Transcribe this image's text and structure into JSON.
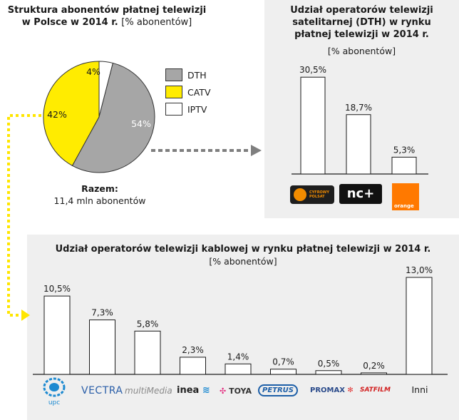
{
  "pie_panel": {
    "title_line1": "Struktura abonentów płatnej telewizji",
    "title_line2": "w Polsce w 2014 r.",
    "unit": "[% abonentów]",
    "total_label": "Razem:",
    "total_value": "11,4 mln abonentów"
  },
  "dth_panel": {
    "title_line1": "Udział operatorów telewizji",
    "title_line2": "satelitarnej (DTH) w rynku",
    "title_line3": "płatnej telewizji w 2014 r.",
    "unit": "[% abonentów]",
    "logos": {
      "cyfrowy": "CYFROWY POLSAT",
      "nc": "nc+",
      "orange": "orange"
    }
  },
  "cable_panel": {
    "title": "Udział operatorów telewizji kablowej w rynku płatnej telewizji w 2014 r.",
    "unit": "[% abonentów]",
    "logos": {
      "upc": "upc",
      "vectra": "VECTRA",
      "multimedia": "multiMedia",
      "inea": "inea",
      "toya": "TOYA",
      "petrus": "PETRUS",
      "promax": "PROMAX",
      "satfilm": "SATFILM",
      "inni": "Inni"
    }
  },
  "colors": {
    "dth": "#a6a6a6",
    "catv": "#ffec00",
    "iptv": "#ffffff",
    "panel": "#efefef",
    "arrow_gray": "#7f7f7f",
    "arrow_yellow": "#ffe600"
  },
  "chart_data": [
    {
      "type": "pie",
      "title": "Struktura abonentów płatnej telewizji w Polsce w 2014 r.",
      "unit": "[% abonentów]",
      "legend_position": "right",
      "slices": [
        {
          "name": "DTH",
          "value": 54,
          "label": "54%",
          "color": "#a6a6a6"
        },
        {
          "name": "CATV",
          "value": 42,
          "label": "42%",
          "color": "#ffec00"
        },
        {
          "name": "IPTV",
          "value": 4,
          "label": "4%",
          "color": "#ffffff"
        }
      ]
    },
    {
      "type": "bar",
      "title": "Udział operatorów telewizji satelitarnej (DTH) w rynku płatnej telewizji w 2014 r.",
      "unit": "[% abonentów]",
      "categories": [
        "Cyfrowy Polsat",
        "nc+",
        "Orange"
      ],
      "values": [
        30.5,
        18.7,
        5.3
      ],
      "labels": [
        "30,5%",
        "18,7%",
        "5,3%"
      ],
      "ylim": [
        0,
        31
      ]
    },
    {
      "type": "bar",
      "title": "Udział operatorów telewizji kablowej w rynku płatnej telewizji w 2014 r.",
      "unit": "[% abonentów]",
      "categories": [
        "UPC",
        "Vectra",
        "Multimedia",
        "Inea",
        "Toya",
        "Petrus",
        "Promax",
        "Satfilm",
        "Inni"
      ],
      "values": [
        10.5,
        7.3,
        5.8,
        2.3,
        1.4,
        0.7,
        0.5,
        0.2,
        13.0
      ],
      "labels": [
        "10,5%",
        "7,3%",
        "5,8%",
        "2,3%",
        "1,4%",
        "0,7%",
        "0,5%",
        "0,2%",
        "13,0%"
      ],
      "ylim": [
        0,
        13
      ]
    }
  ]
}
